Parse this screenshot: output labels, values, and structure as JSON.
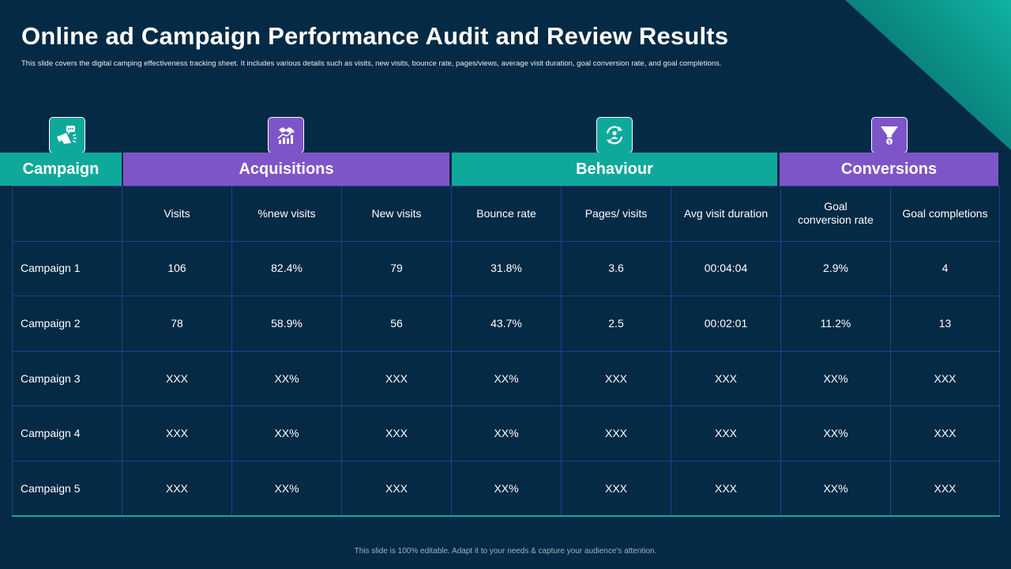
{
  "title": "Online ad Campaign Performance Audit and Review Results",
  "subtitle": "This slide covers the digital camping effectiveness tracking sheet. It includes various details such as visits, new visits, bounce rate, pages/views, average visit duration, goal conversion rate, and goal completions.",
  "groups": {
    "campaign": "Campaign",
    "acquisitions": "Acquisitions",
    "behaviour": "Behaviour",
    "conversions": "Conversions"
  },
  "columns": [
    "",
    "Visits",
    "%new visits",
    "New visits",
    "Bounce rate",
    "Pages/ visits",
    "Avg visit duration",
    "Goal conversion rate",
    "Goal completions"
  ],
  "rows": [
    [
      "Campaign 1",
      "106",
      "82.4%",
      "79",
      "31.8%",
      "3.6",
      "00:04:04",
      "2.9%",
      "4"
    ],
    [
      "Campaign 2",
      "78",
      "58.9%",
      "56",
      "43.7%",
      "2.5",
      "00:02:01",
      "11.2%",
      "13"
    ],
    [
      "Campaign 3",
      "XXX",
      "XX%",
      "XXX",
      "XX%",
      "XXX",
      "XXX",
      "XX%",
      "XXX"
    ],
    [
      "Campaign 4",
      "XXX",
      "XX%",
      "XXX",
      "XX%",
      "XXX",
      "XXX",
      "XX%",
      "XXX"
    ],
    [
      "Campaign 5",
      "XXX",
      "XX%",
      "XXX",
      "XX%",
      "XXX",
      "XXX",
      "XX%",
      "XXX"
    ]
  ],
  "footer": "This slide is 100% editable. Adapt it to your needs & capture your audience's attention.",
  "icons": [
    "megaphone-icon",
    "handshake-growth-icon",
    "user-refresh-icon",
    "funnel-icon"
  ],
  "colors": {
    "background": "#052a45",
    "teal": "#0fa99b",
    "purple": "#7e55c9",
    "grid": "#253f8f"
  }
}
